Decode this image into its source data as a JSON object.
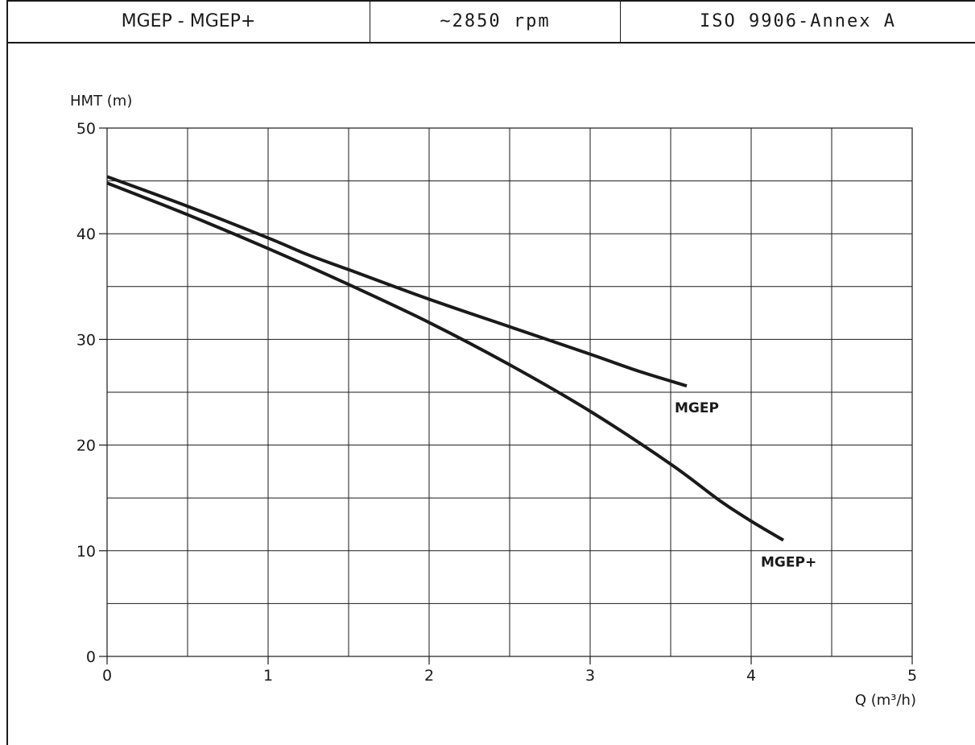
{
  "header": {
    "model": "MGEP - MGEP+",
    "speed": "~2850 rpm",
    "standard": "ISO 9906-Annex A"
  },
  "chart_data": {
    "type": "line",
    "ylabel": "HMT (m)",
    "xlabel": "Q (m³/h)",
    "xlim": [
      0,
      5
    ],
    "ylim": [
      0,
      50
    ],
    "x_ticks": [
      0,
      1,
      2,
      3,
      4,
      5
    ],
    "y_ticks": [
      0,
      10,
      20,
      30,
      40,
      50
    ],
    "x_grid_step": 0.5,
    "y_grid_step": 5,
    "grid": true,
    "series": [
      {
        "name": "MGEP",
        "color": "#1a1a1a",
        "x": [
          0,
          0.5,
          1,
          1.25,
          1.5,
          2,
          2.5,
          3,
          3.3,
          3.6
        ],
        "y": [
          45.4,
          42.6,
          39.6,
          38.0,
          36.6,
          33.8,
          31.2,
          28.6,
          27.0,
          25.6
        ]
      },
      {
        "name": "MGEP+",
        "color": "#1a1a1a",
        "x": [
          0,
          0.5,
          1,
          1.5,
          2,
          2.5,
          3,
          3.5,
          3.8,
          4.0,
          4.2
        ],
        "y": [
          44.8,
          41.8,
          38.6,
          35.2,
          31.6,
          27.6,
          23.2,
          18.2,
          14.8,
          12.8,
          11.0
        ]
      }
    ]
  }
}
